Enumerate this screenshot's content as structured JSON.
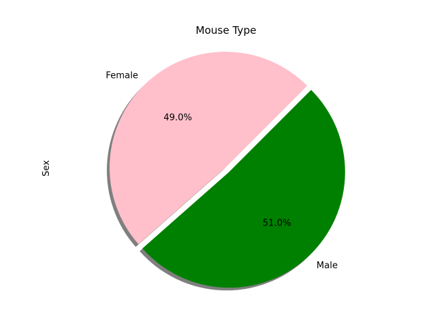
{
  "chart_data": {
    "type": "pie",
    "title": "Mouse Type",
    "ylabel": "Sex",
    "slices": [
      {
        "label": "Female",
        "value": 49.0,
        "pct_label": "49.0%",
        "color": "#ffc0cb",
        "explode": 0.0
      },
      {
        "label": "Male",
        "value": 51.0,
        "pct_label": "51.0%",
        "color": "#008000",
        "explode": 0.05
      }
    ],
    "start_angle_deg": 45,
    "direction": "counterclockwise",
    "shadow": true,
    "legend": "none"
  }
}
